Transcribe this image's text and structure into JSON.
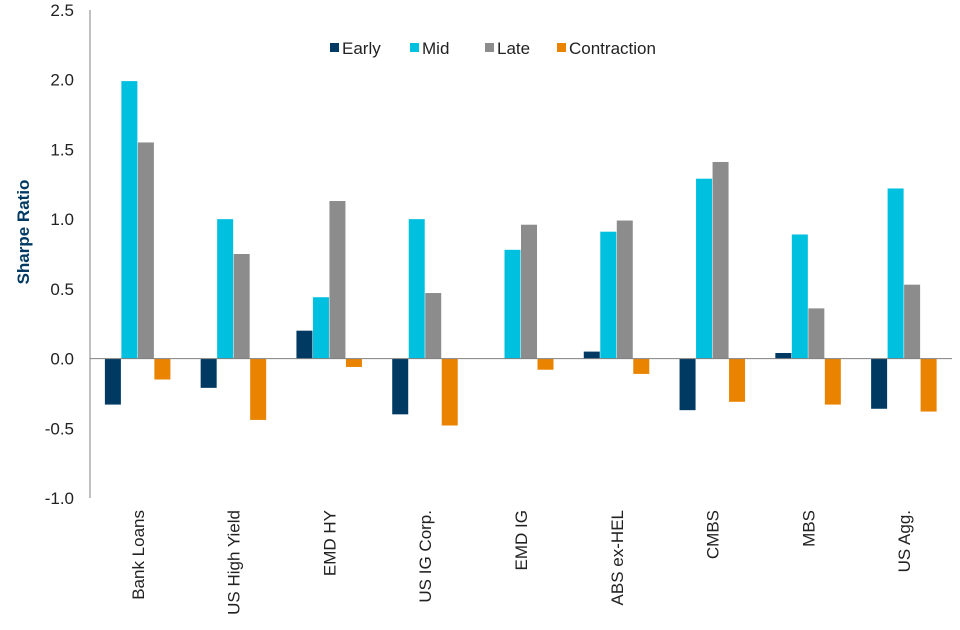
{
  "chart_data": {
    "type": "bar",
    "title": "",
    "xlabel": "",
    "ylabel": "Sharpe Ratio",
    "ylim": [
      -1.0,
      2.5
    ],
    "yticks": [
      "2.5",
      "2.0",
      "1.5",
      "1.0",
      "0.5",
      "0.0",
      "-0.5",
      "-1.0"
    ],
    "ytick_values": [
      2.5,
      2.0,
      1.5,
      1.0,
      0.5,
      0.0,
      -0.5,
      -1.0
    ],
    "grid": false,
    "legend_position": "top",
    "categories": [
      "Bank Loans",
      "US High Yield",
      "EMD HY",
      "US IG Corp.",
      "EMD IG",
      "ABS ex-HEL",
      "CMBS",
      "MBS",
      "US Agg."
    ],
    "series": [
      {
        "name": "Early",
        "color": "#003a63",
        "values": [
          -0.33,
          -0.21,
          0.2,
          -0.4,
          0.0,
          0.05,
          -0.37,
          0.04,
          -0.36
        ]
      },
      {
        "name": "Mid",
        "color": "#00c0e0",
        "values": [
          1.99,
          1.0,
          0.44,
          1.0,
          0.78,
          0.91,
          1.29,
          0.89,
          1.22
        ]
      },
      {
        "name": "Late",
        "color": "#8c8c8c",
        "values": [
          1.55,
          0.75,
          1.13,
          0.47,
          0.96,
          0.99,
          1.41,
          0.36,
          0.53
        ]
      },
      {
        "name": "Contraction",
        "color": "#e98300",
        "values": [
          -0.15,
          -0.44,
          -0.06,
          -0.48,
          -0.08,
          -0.11,
          -0.31,
          -0.33,
          -0.38
        ]
      }
    ],
    "ylabel_color": "#003a63",
    "axis_color": "#808080"
  }
}
